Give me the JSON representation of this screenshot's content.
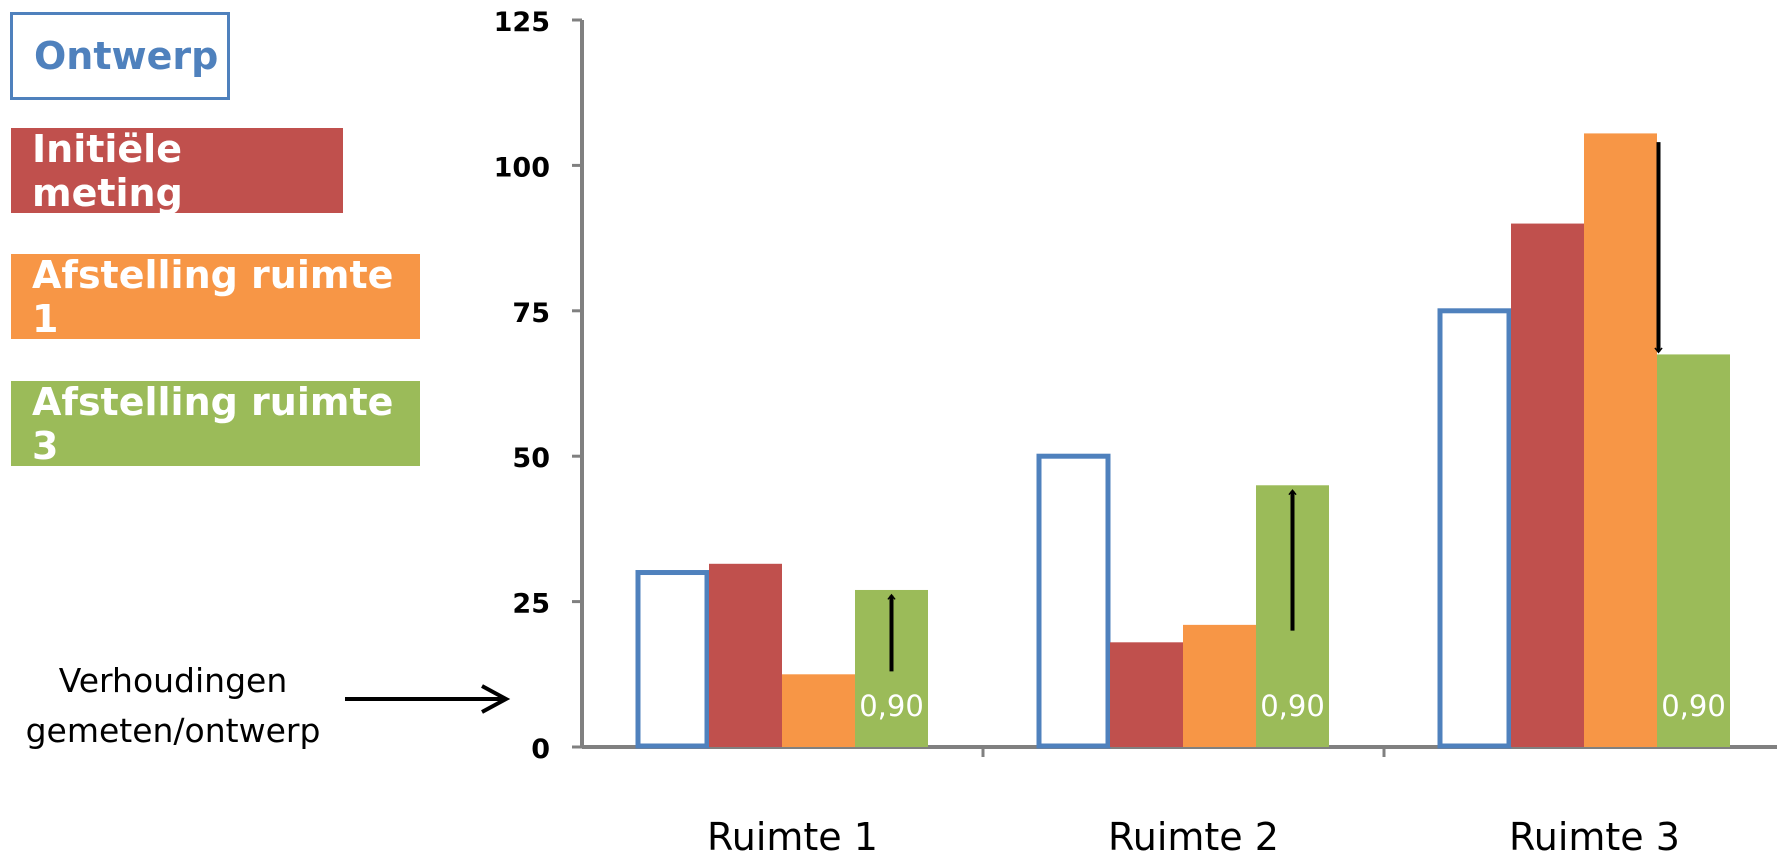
{
  "legend": [
    {
      "label": "Ontwerp"
    },
    {
      "label": "Initiële meting"
    },
    {
      "label": "Afstelling ruimte 1"
    },
    {
      "label": "Afstelling ruimte 3"
    }
  ],
  "note": {
    "line1": "Verhoudingen",
    "line2": "gemeten/ontwerp"
  },
  "chart_data": {
    "type": "bar",
    "categories": [
      "Ruimte 1",
      "Ruimte 2",
      "Ruimte 3"
    ],
    "series": [
      {
        "name": "Ontwerp",
        "values": [
          30,
          50,
          75
        ],
        "color": "#4f81bd",
        "style": "outline"
      },
      {
        "name": "Initiële meting",
        "values": [
          31.5,
          18,
          90
        ],
        "color": "#c0504d"
      },
      {
        "name": "Afstelling ruimte 1",
        "values": [
          12.5,
          21,
          105.5
        ],
        "color": "#f79646"
      },
      {
        "name": "Afstelling ruimte 3",
        "values": [
          27,
          45,
          67.5
        ],
        "color": "#9bbb59"
      }
    ],
    "data_labels": [
      {
        "series": 3,
        "category": 0,
        "text": "0,90"
      },
      {
        "series": 3,
        "category": 1,
        "text": "0,90"
      },
      {
        "series": 3,
        "category": 2,
        "text": "0,90"
      }
    ],
    "arrows": [
      {
        "category": 0,
        "direction": "up",
        "from": 13,
        "to": 26
      },
      {
        "category": 1,
        "direction": "up",
        "from": 20,
        "to": 44
      },
      {
        "category": 2,
        "direction": "down",
        "from": 104,
        "to": 68
      }
    ],
    "yticks": [
      "0",
      "25",
      "50",
      "75",
      "100",
      "125"
    ],
    "ylim": [
      0,
      125
    ],
    "grid": false,
    "legend_position": "left"
  }
}
